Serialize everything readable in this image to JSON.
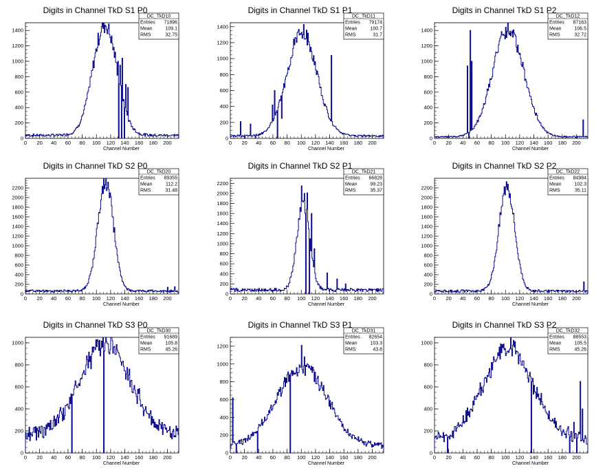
{
  "chart_data": [
    {
      "type": "histogram",
      "title": "Digits in Channel TkD S1 P0",
      "xlabel": "Channel Number",
      "xlim": [
        0,
        216
      ],
      "ylim": [
        0,
        1500
      ],
      "yticks": [
        0,
        200,
        400,
        600,
        800,
        1000,
        1200,
        1400
      ],
      "stats": {
        "name": "DC_TkD10",
        "entries": "71896",
        "mean": "109.1",
        "rms": "32.75"
      },
      "peak": {
        "center": 112,
        "sigma": 17,
        "height": 1440
      },
      "baseline": 40,
      "spikes": [
        {
          "x": 130,
          "y": 1000
        },
        {
          "x": 133,
          "y": 950
        },
        {
          "x": 136,
          "y": 1040
        },
        {
          "x": 141,
          "y": 700
        },
        {
          "x": 144,
          "y": 660
        }
      ],
      "dips": [
        {
          "x": 131
        },
        {
          "x": 135
        },
        {
          "x": 139
        }
      ]
    },
    {
      "type": "histogram",
      "title": "Digits in Channel TkD S1 P1",
      "xlabel": "Channel Number",
      "xlim": [
        0,
        216
      ],
      "ylim": [
        0,
        1450
      ],
      "yticks": [
        0,
        200,
        400,
        600,
        800,
        1000,
        1200,
        1400
      ],
      "stats": {
        "name": "DC_TkD11",
        "entries": "79174",
        "mean": "100.7",
        "rms": "31.7"
      },
      "peak": {
        "center": 101,
        "sigma": 21,
        "height": 1300
      },
      "baseline": 30,
      "spikes": [
        {
          "x": 14,
          "y": 210
        },
        {
          "x": 28,
          "y": 180
        },
        {
          "x": 59,
          "y": 420
        },
        {
          "x": 62,
          "y": 600
        },
        {
          "x": 72,
          "y": 250
        },
        {
          "x": 100,
          "y": 1330
        },
        {
          "x": 142,
          "y": 1040
        }
      ],
      "dips": [
        {
          "x": 20
        },
        {
          "x": 35
        },
        {
          "x": 66
        }
      ]
    },
    {
      "type": "histogram",
      "title": "Digits in Channel TkD S1 P2",
      "xlabel": "Channel Number",
      "xlim": [
        0,
        216
      ],
      "ylim": [
        0,
        1500
      ],
      "yticks": [
        0,
        200,
        400,
        600,
        800,
        1000,
        1200,
        1400
      ],
      "stats": {
        "name": "DC_TkD12",
        "entries": "87163",
        "mean": "106.5",
        "rms": "32.72"
      },
      "peak": {
        "center": 104,
        "sigma": 22,
        "height": 1400
      },
      "baseline": 20,
      "spikes": [
        {
          "x": 46,
          "y": 940
        },
        {
          "x": 50,
          "y": 1400
        },
        {
          "x": 52,
          "y": 1000
        },
        {
          "x": 102,
          "y": 1390
        },
        {
          "x": 209,
          "y": 240
        }
      ],
      "dips": [
        {
          "x": 48
        },
        {
          "x": 200
        }
      ]
    },
    {
      "type": "histogram",
      "title": "Digits in Channel TkD S2 P0",
      "xlabel": "Channel Number",
      "xlim": [
        0,
        216
      ],
      "ylim": [
        0,
        2400
      ],
      "yticks": [
        0,
        200,
        400,
        600,
        800,
        1000,
        1200,
        1400,
        1600,
        1800,
        2000,
        2200
      ],
      "stats": {
        "name": "DC_TkD20",
        "entries": "89355",
        "mean": "112.2",
        "rms": "31.48"
      },
      "peak": {
        "center": 113,
        "sigma": 11,
        "height": 2280
      },
      "baseline": 60,
      "spikes": [
        {
          "x": 200,
          "y": 140
        },
        {
          "x": 210,
          "y": 150
        }
      ],
      "dips": []
    },
    {
      "type": "histogram",
      "title": "Digits in Channel TkD S2 P1",
      "xlabel": "Channel Number",
      "xlim": [
        0,
        216
      ],
      "ylim": [
        0,
        2300
      ],
      "yticks": [
        0,
        200,
        400,
        600,
        800,
        1000,
        1200,
        1400,
        1600,
        1800,
        2000,
        2200
      ],
      "stats": {
        "name": "DC_TkD21",
        "entries": "66828",
        "mean": "99.23",
        "rms": "35.37"
      },
      "peak": {
        "center": 103,
        "sigma": 9,
        "height": 1700
      },
      "baseline": 80,
      "spikes": [
        {
          "x": 100,
          "y": 2150
        },
        {
          "x": 104,
          "y": 2000
        },
        {
          "x": 108,
          "y": 2010
        },
        {
          "x": 114,
          "y": 1600
        },
        {
          "x": 118,
          "y": 900
        },
        {
          "x": 136,
          "y": 420
        },
        {
          "x": 150,
          "y": 300
        },
        {
          "x": 162,
          "y": 200
        }
      ],
      "dips": [
        {
          "x": 106
        },
        {
          "x": 111
        }
      ]
    },
    {
      "type": "histogram",
      "title": "Digits in Channel TkD S2 P2",
      "xlabel": "Channel Number",
      "xlim": [
        0,
        216
      ],
      "ylim": [
        0,
        2400
      ],
      "yticks": [
        0,
        200,
        400,
        600,
        800,
        1000,
        1200,
        1400,
        1600,
        1800,
        2000,
        2200
      ],
      "stats": {
        "name": "DC_TkD22",
        "entries": "84984",
        "mean": "102.3",
        "rms": "35.11"
      },
      "peak": {
        "center": 102,
        "sigma": 11,
        "height": 2200
      },
      "baseline": 60,
      "spikes": [
        {
          "x": 210,
          "y": 250
        }
      ],
      "dips": []
    },
    {
      "type": "histogram",
      "title": "Digits in Channel TkD S3 P0",
      "xlabel": "Channel Number",
      "xlim": [
        0,
        216
      ],
      "ylim": [
        0,
        1050
      ],
      "yticks": [
        0,
        200,
        400,
        600,
        800,
        1000
      ],
      "stats": {
        "name": "DC_TkD30",
        "entries": "91689",
        "mean": "105.8",
        "rms": "45.26"
      },
      "peak": {
        "center": 112,
        "sigma": 35,
        "height": 850
      },
      "baseline": 160,
      "spikes": [
        {
          "x": 108,
          "y": 960
        },
        {
          "x": 112,
          "y": 1000
        },
        {
          "x": 116,
          "y": 990
        },
        {
          "x": 213,
          "y": 200
        }
      ],
      "dips": [
        {
          "x": 65
        },
        {
          "x": 110
        }
      ]
    },
    {
      "type": "histogram",
      "title": "Digits in Channel TkD S3 P1",
      "xlabel": "Channel Number",
      "xlim": [
        0,
        216
      ],
      "ylim": [
        0,
        1300
      ],
      "yticks": [
        0,
        200,
        400,
        600,
        800,
        1000,
        1200
      ],
      "stats": {
        "name": "DC_TkD31",
        "entries": "82654",
        "mean": "103.3",
        "rms": "43.8"
      },
      "peak": {
        "center": 101,
        "sigma": 35,
        "height": 900
      },
      "baseline": 80,
      "spikes": [
        {
          "x": 3,
          "y": 620
        },
        {
          "x": 100,
          "y": 1210
        },
        {
          "x": 104,
          "y": 1080
        },
        {
          "x": 108,
          "y": 1000
        }
      ],
      "dips": [
        {
          "x": 8
        },
        {
          "x": 38
        },
        {
          "x": 84
        }
      ]
    },
    {
      "type": "histogram",
      "title": "Digits in Channel TkD S3 P2",
      "xlabel": "Channel Number",
      "xlim": [
        0,
        216
      ],
      "ylim": [
        0,
        1050
      ],
      "yticks": [
        0,
        200,
        400,
        600,
        800,
        1000
      ],
      "stats": {
        "name": "DC_TkD32",
        "entries": "88553",
        "mean": "105.5",
        "rms": "45.26"
      },
      "peak": {
        "center": 104,
        "sigma": 35,
        "height": 850
      },
      "baseline": 120,
      "spikes": [
        {
          "x": 188,
          "y": 240
        },
        {
          "x": 196,
          "y": 280
        },
        {
          "x": 205,
          "y": 650
        },
        {
          "x": 208,
          "y": 400
        }
      ],
      "dips": [
        {
          "x": 18
        },
        {
          "x": 136
        },
        {
          "x": 190
        },
        {
          "x": 200
        }
      ]
    }
  ],
  "labels": {
    "entries": "Entries",
    "mean": "Mean",
    "rms": "RMS"
  },
  "colors": {
    "histogram": "#0a0a8c",
    "axis": "#000000",
    "background": "#ffffff"
  }
}
